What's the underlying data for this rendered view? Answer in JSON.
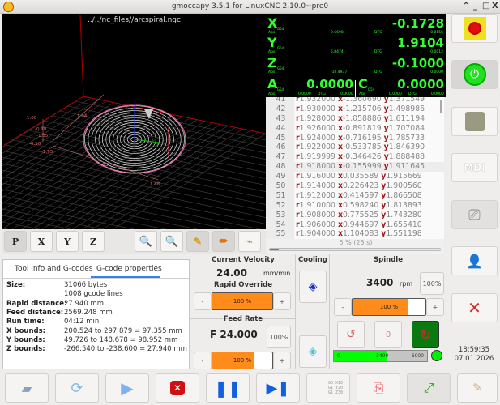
{
  "window": {
    "title": "gmoccapy 3.5.1 for LinuxCNC 2.10.0~pre0",
    "controls": [
      "^",
      "_",
      "□",
      "X"
    ]
  },
  "view": {
    "filename": "../../nc_files//arcspiral.ngc",
    "dimension_labels": [
      "1.00",
      "-0.10",
      "-1.95",
      "1.94",
      "3.83",
      "1.88",
      "-1.85",
      "-0.10"
    ],
    "axis_label": "Z",
    "buttons": [
      "P",
      "X",
      "Y",
      "Z"
    ]
  },
  "dro": {
    "coord_system": "G54",
    "abs_label": "Abs",
    "dtg_label": "DTG",
    "axes": [
      {
        "name": "X",
        "value": "-0.1728",
        "abs": "9.6698",
        "dtg": "0.0156"
      },
      {
        "name": "Y",
        "value": "1.9104",
        "abs": "5.8474",
        "dtg": "0.0012"
      },
      {
        "name": "Z",
        "value": "-0.1000",
        "abs": "-10.4937",
        "dtg": "0.0000"
      },
      {
        "name": "A",
        "value": "0.0000",
        "abs": "0.0000",
        "dtg": "0.0000"
      },
      {
        "name": "C",
        "value": "0.0000",
        "abs": "0.0000",
        "dtg": "0.0000"
      }
    ]
  },
  "gcode": {
    "current_line": 48,
    "lines": [
      {
        "n": "41",
        "r": "1.932000",
        "x": "-1.360690",
        "y": "1.371549"
      },
      {
        "n": "42",
        "r": "1.930000",
        "x": "-1.215706",
        "y": "1.498986"
      },
      {
        "n": "43",
        "r": "1.928000",
        "x": "-1.058886",
        "y": "1.611194"
      },
      {
        "n": "44",
        "r": "1.926000",
        "x": "-0.891819",
        "y": "1.707084"
      },
      {
        "n": "45",
        "r": "1.924000",
        "x": "-0.716195",
        "y": "1.785733"
      },
      {
        "n": "46",
        "r": "1.922000",
        "x": "-0.533785",
        "y": "1.846390"
      },
      {
        "n": "47",
        "r": "1.919999",
        "x": "-0.346426",
        "y": "1.888488"
      },
      {
        "n": "48",
        "r": "1.918000",
        "x": "-0.155999",
        "y": "1.911645"
      },
      {
        "n": "49",
        "r": "1.916000",
        "x": "0.035589",
        "y": "1.915669"
      },
      {
        "n": "50",
        "r": "1.914000",
        "x": "0.226423",
        "y": "1.900560"
      },
      {
        "n": "51",
        "r": "1.912000",
        "x": "0.414597",
        "y": "1.866508"
      },
      {
        "n": "52",
        "r": "1.910000",
        "x": "0.598240",
        "y": "1.813893"
      },
      {
        "n": "53",
        "r": "1.908000",
        "x": "0.775525",
        "y": "1.743280"
      },
      {
        "n": "54",
        "r": "1.906000",
        "x": "0.944697",
        "y": "1.655410"
      },
      {
        "n": "55",
        "r": "1.904000",
        "x": "1.104083",
        "y": "1.551198"
      }
    ],
    "progress_text": "5 % (25 s)",
    "progress_percent": 5
  },
  "info": {
    "tabs": [
      "Tool info and G-codes",
      "G-code properties"
    ],
    "active_tab": 1,
    "props": [
      {
        "k": "Size:",
        "v": "31066 bytes"
      },
      {
        "k": "",
        "v": "1008 gcode lines"
      },
      {
        "k": "Rapid distance:",
        "v": "27.940 mm"
      },
      {
        "k": "Feed distance:",
        "v": "2569.248 mm"
      },
      {
        "k": "Run time:",
        "v": "04:12 min"
      },
      {
        "k": "X bounds:",
        "v": "200.524 to 297.879 = 97.355 mm"
      },
      {
        "k": "Y bounds:",
        "v": "49.726 to 148.678 = 98.952 mm"
      },
      {
        "k": "Z bounds:",
        "v": "-266.540 to -238.600 = 27.940 mm"
      }
    ]
  },
  "velocity": {
    "title": "Current Velocity",
    "value": "24.00",
    "unit": "mm/min"
  },
  "rapid": {
    "title": "Rapid Override",
    "minus": "-",
    "plus": "+",
    "label": "100 %",
    "percent": 100
  },
  "feed": {
    "title": "Feed Rate",
    "value": "F 24.000",
    "reset": "100%",
    "minus": "-",
    "plus": "+",
    "label": "100 %",
    "percent": 70
  },
  "cooling": {
    "title": "Cooling"
  },
  "spindle": {
    "title": "Spindle",
    "value": "3400",
    "unit": "rpm",
    "reset": "100%",
    "minus": "-",
    "plus": "+",
    "label": "100 %",
    "percent": 75,
    "bar_min": "0",
    "bar_value": "3400",
    "bar_max": "6000",
    "bar_percent": 56.7,
    "at_speed_color": "#00ee00"
  },
  "sidebar": {
    "time": "18:59:35",
    "date": "07.01.2026"
  },
  "bottom": {
    "gcode_icon_text": [
      "G0 X10",
      "G1 Y20",
      "G1 Z30"
    ]
  }
}
